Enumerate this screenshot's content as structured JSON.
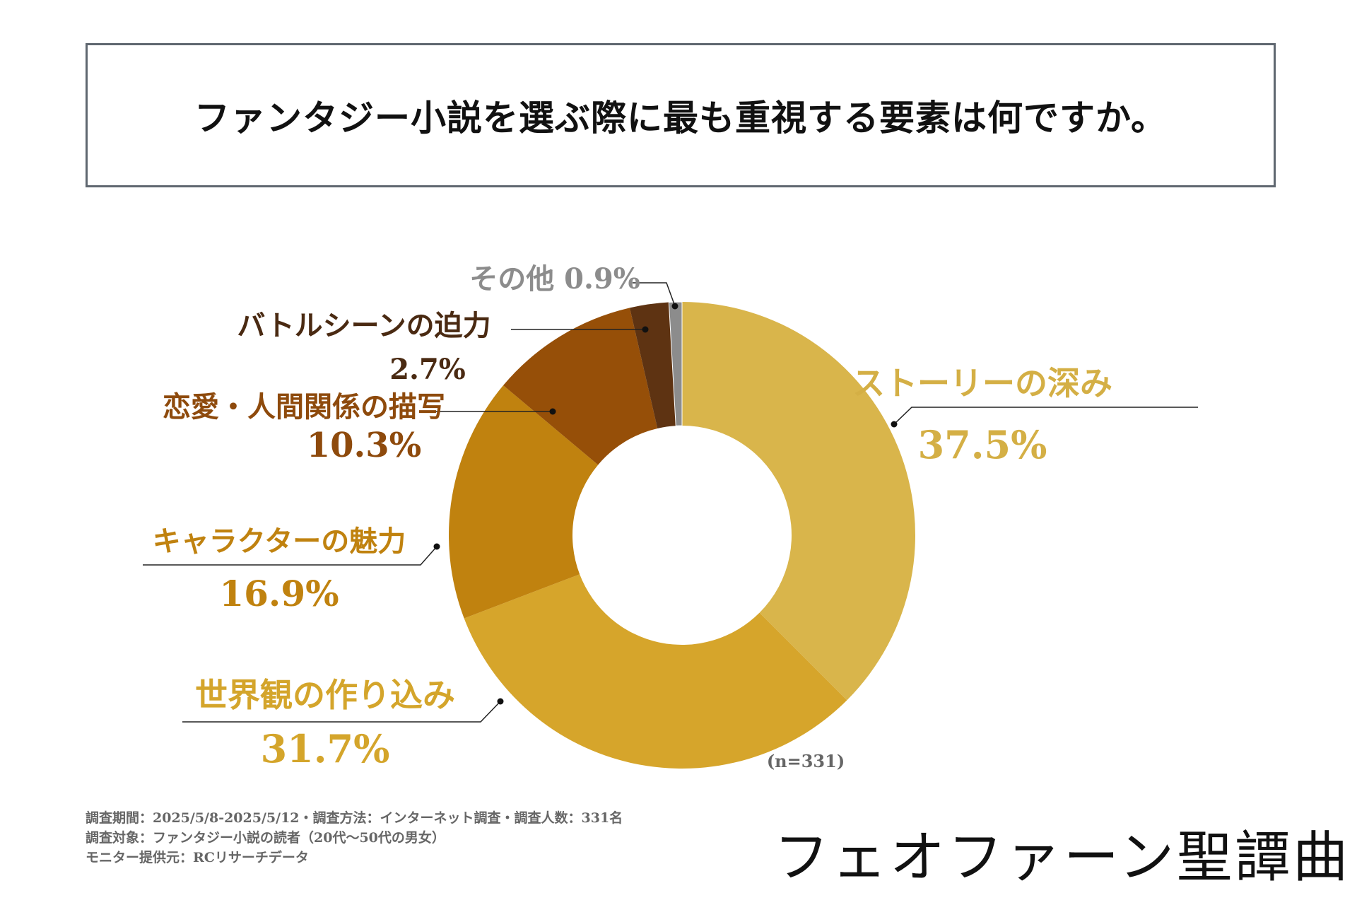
{
  "title": "ファンタジー小説を選ぶ際に最も重視する要素は何ですか。",
  "chart_data": {
    "type": "pie",
    "subtype": "donut",
    "title": "ファンタジー小説を選ぶ際に最も重視する要素は何ですか。",
    "sample_note": "(n=331)",
    "slices": [
      {
        "label": "ストーリーの深み",
        "value": 37.5,
        "value_label": "37.5%",
        "color": "#D9B54B",
        "label_color": "#D4AF45"
      },
      {
        "label": "世界観の作り込み",
        "value": 31.7,
        "value_label": "31.7%",
        "color": "#D6A52B",
        "label_color": "#D4A52B"
      },
      {
        "label": "キャラクターの魅力",
        "value": 16.9,
        "value_label": "16.9%",
        "color": "#C0820F",
        "label_color": "#C0820F"
      },
      {
        "label": "恋愛・人間関係の描写",
        "value": 10.3,
        "value_label": "10.3%",
        "color": "#964F08",
        "label_color": "#8E4A0C"
      },
      {
        "label": "バトルシーンの迫力",
        "value": 2.7,
        "value_label": "2.7%",
        "color": "#5E3312",
        "label_color": "#4A2A12"
      },
      {
        "label": "その他",
        "value": 0.9,
        "value_label": "0.9%",
        "color": "#8C8C8C",
        "label_color": "#8C8C8C"
      }
    ]
  },
  "footnote": {
    "line1": "調査期間：2025/5/8-2025/5/12・調査方法：インターネット調査・調査人数：331名",
    "line2": "調査対象：ファンタジー小説の読者（20代〜50代の男女）",
    "line3": "モニター提供元：RCリサーチデータ"
  },
  "brand": "フェオファーン聖譚曲"
}
